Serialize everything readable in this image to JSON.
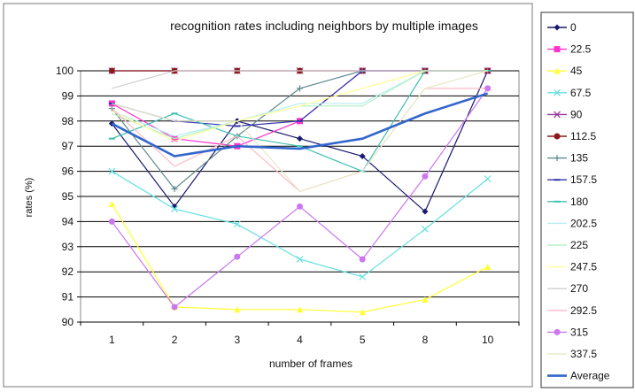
{
  "chart_data": {
    "type": "line",
    "title": "recognition rates including neighbors by multiple images",
    "xlabel": "number of frames",
    "ylabel": "rates (%)",
    "categories": [
      "1",
      "2",
      "3",
      "4",
      "5",
      "8",
      "10"
    ],
    "ylim": [
      90,
      100
    ],
    "yticks": [
      "90",
      "91",
      "92",
      "93",
      "94",
      "95",
      "96",
      "97",
      "98",
      "99",
      "100"
    ],
    "grid": true,
    "legend_position": "right",
    "series": [
      {
        "name": "0",
        "color": "#1a1a6e",
        "marker": "diamond",
        "values": [
          97.9,
          94.6,
          98.0,
          97.3,
          96.6,
          94.4,
          100.0
        ]
      },
      {
        "name": "22.5",
        "color": "#ff33cc",
        "marker": "square",
        "values": [
          98.7,
          97.3,
          97.0,
          98.0,
          100.0,
          100.0,
          100.0
        ]
      },
      {
        "name": "45",
        "color": "#ffff33",
        "marker": "triangle",
        "values": [
          94.7,
          90.6,
          90.5,
          90.5,
          90.4,
          90.9,
          92.2
        ]
      },
      {
        "name": "67.5",
        "color": "#66e0e0",
        "marker": "cross",
        "values": [
          96.0,
          94.5,
          93.9,
          92.5,
          91.8,
          93.7,
          95.7
        ]
      },
      {
        "name": "90",
        "color": "#993399",
        "marker": "x",
        "values": [
          100.0,
          100.0,
          100.0,
          100.0,
          100.0,
          100.0,
          100.0
        ]
      },
      {
        "name": "112.5",
        "color": "#8b1a1a",
        "marker": "circle",
        "values": [
          100.0,
          100.0,
          100.0,
          100.0,
          100.0,
          100.0,
          100.0
        ]
      },
      {
        "name": "135",
        "color": "#5f8a8a",
        "marker": "plus",
        "values": [
          98.5,
          95.3,
          97.4,
          99.3,
          100.0,
          100.0,
          100.0
        ]
      },
      {
        "name": "157.5",
        "color": "#3333aa",
        "marker": "dash",
        "values": [
          98.7,
          98.0,
          97.8,
          98.0,
          100.0,
          100.0,
          100.0
        ]
      },
      {
        "name": "180",
        "color": "#40c0b0",
        "marker": "dash",
        "values": [
          97.3,
          98.3,
          97.4,
          97.0,
          96.0,
          100.0,
          100.0
        ]
      },
      {
        "name": "202.5",
        "color": "#b8eef0",
        "marker": "none",
        "values": [
          98.4,
          97.4,
          98.0,
          98.7,
          98.7,
          100.0,
          100.0
        ]
      },
      {
        "name": "225",
        "color": "#b8f0c8",
        "marker": "none",
        "values": [
          98.3,
          97.3,
          98.0,
          98.6,
          98.6,
          100.0,
          100.0
        ]
      },
      {
        "name": "247.5",
        "color": "#ffff99",
        "marker": "none",
        "values": [
          98.4,
          97.2,
          98.0,
          98.6,
          99.3,
          100.0,
          100.0
        ]
      },
      {
        "name": "270",
        "color": "#d0d0d0",
        "marker": "none",
        "values": [
          99.3,
          100.0,
          100.0,
          100.0,
          100.0,
          100.0,
          100.0
        ]
      },
      {
        "name": "292.5",
        "color": "#ffb8c8",
        "marker": "none",
        "values": [
          98.5,
          96.2,
          97.4,
          95.2,
          96.0,
          99.3,
          99.3
        ]
      },
      {
        "name": "315",
        "color": "#cc77ee",
        "marker": "circle",
        "values": [
          94.0,
          90.6,
          92.6,
          94.6,
          92.5,
          95.8,
          99.3
        ]
      },
      {
        "name": "337.5",
        "color": "#e8e8c8",
        "marker": "none",
        "values": [
          98.7,
          98.0,
          98.0,
          95.2,
          96.0,
          99.3,
          100.0
        ]
      },
      {
        "name": "Average",
        "color": "#3366cc",
        "marker": "none",
        "values": [
          97.9,
          96.6,
          97.0,
          96.9,
          97.3,
          98.3,
          99.1
        ]
      }
    ]
  }
}
